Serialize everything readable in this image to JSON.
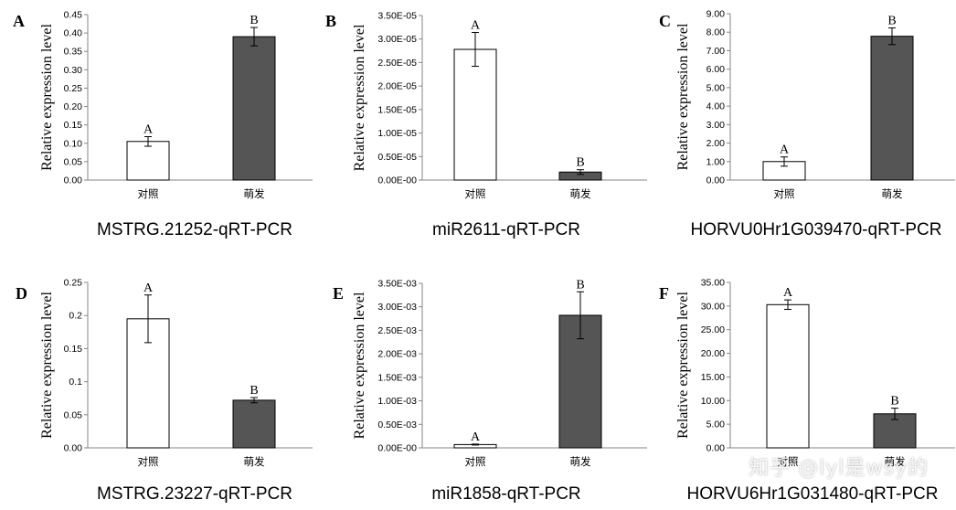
{
  "figure": {
    "ylabel": "Relative expression level",
    "categories": [
      "对照",
      "萌发"
    ],
    "colors": {
      "control_fill": "#ffffff",
      "treatment_fill": "#555555",
      "stroke": "#000000",
      "axis": "#868686"
    },
    "watermark": "知乎 @lyl是wsy的"
  },
  "chart_data": [
    {
      "panel": "A",
      "type": "bar",
      "title": "MSTRG.21252-qRT-PCR",
      "categories": [
        "对照",
        "萌发"
      ],
      "values": [
        0.105,
        0.39
      ],
      "errors": [
        0.013,
        0.025
      ],
      "sig_letters": [
        "A",
        "B"
      ],
      "ylim": [
        0,
        0.45
      ],
      "ticks": [
        0.0,
        0.05,
        0.1,
        0.15,
        0.2,
        0.25,
        0.3,
        0.35,
        0.4,
        0.45
      ],
      "tick_labels": [
        "0.00",
        "0.05",
        "0.10",
        "0.15",
        "0.20",
        "0.25",
        "0.30",
        "0.35",
        "0.40",
        "0.45"
      ],
      "ylabel": "Relative expression level"
    },
    {
      "panel": "B",
      "type": "bar",
      "title": "miR2611-qRT-PCR",
      "categories": [
        "对照",
        "萌发"
      ],
      "values": [
        2.78e-05,
        1.7e-06
      ],
      "errors": [
        3.6e-06,
        5e-07
      ],
      "sig_letters": [
        "A",
        "B"
      ],
      "ylim": [
        0,
        3.5e-05
      ],
      "ticks": [
        0,
        5e-06,
        1e-05,
        1.5e-05,
        2e-05,
        2.5e-05,
        3e-05,
        3.5e-05
      ],
      "tick_labels": [
        "0.00E-00",
        "0.50E-05",
        "1.00E-05",
        "1.50E-05",
        "2.00E-05",
        "2.50E-05",
        "3.00E-05",
        "3.50E-05"
      ],
      "ylabel": "Relative expression level"
    },
    {
      "panel": "C",
      "type": "bar",
      "title": "HORVU0Hr1G039470-qRT-PCR",
      "categories": [
        "对照",
        "萌发"
      ],
      "values": [
        1.0,
        7.78
      ],
      "errors": [
        0.25,
        0.45
      ],
      "sig_letters": [
        "A",
        "B"
      ],
      "ylim": [
        0,
        9
      ],
      "ticks": [
        0,
        1,
        2,
        3,
        4,
        5,
        6,
        7,
        8,
        9
      ],
      "tick_labels": [
        "0.00",
        "1.00",
        "2.00",
        "3.00",
        "4.00",
        "5.00",
        "6.00",
        "7.00",
        "8.00",
        "9.00"
      ],
      "ylabel": "Relative expression level"
    },
    {
      "panel": "D",
      "type": "bar",
      "title": "MSTRG.23227-qRT-PCR",
      "categories": [
        "对照",
        "萌发"
      ],
      "values": [
        0.195,
        0.072
      ],
      "errors": [
        0.036,
        0.004
      ],
      "sig_letters": [
        "A",
        "B"
      ],
      "ylim": [
        0,
        0.25
      ],
      "ticks": [
        0,
        0.05,
        0.1,
        0.15,
        0.2,
        0.25
      ],
      "tick_labels": [
        "0.00",
        "0.05",
        "0.1",
        "0.15",
        "0.2",
        "0.25"
      ],
      "ylabel": "Relative expression level"
    },
    {
      "panel": "E",
      "type": "bar",
      "title": "miR1858-qRT-PCR",
      "categories": [
        "对照",
        "萌发"
      ],
      "values": [
        7e-05,
        0.00282
      ],
      "errors": [
        1e-05,
        0.0005
      ],
      "sig_letters": [
        "A",
        "B"
      ],
      "ylim": [
        0,
        0.0035
      ],
      "ticks": [
        0,
        0.0005,
        0.001,
        0.0015,
        0.002,
        0.0025,
        0.003,
        0.0035
      ],
      "tick_labels": [
        "0.00E-00",
        "0.50E-03",
        "1.00E-03",
        "1.50E-03",
        "2.00E-03",
        "2.50E-03",
        "3.00E-03",
        "3.50E-03"
      ],
      "ylabel": "Relative expression level"
    },
    {
      "panel": "F",
      "type": "bar",
      "title": "HORVU6Hr1G031480-qRT-PCR",
      "categories": [
        "对照",
        "萌发"
      ],
      "values": [
        30.3,
        7.2
      ],
      "errors": [
        1.0,
        1.2
      ],
      "sig_letters": [
        "A",
        "B"
      ],
      "ylim": [
        0,
        35
      ],
      "ticks": [
        0,
        5,
        10,
        15,
        20,
        25,
        30,
        35
      ],
      "tick_labels": [
        "0.00",
        "5.00",
        "10.00",
        "15.00",
        "20.00",
        "25.00",
        "30.00",
        "35.00"
      ],
      "ylabel": "Relative expression level"
    }
  ]
}
